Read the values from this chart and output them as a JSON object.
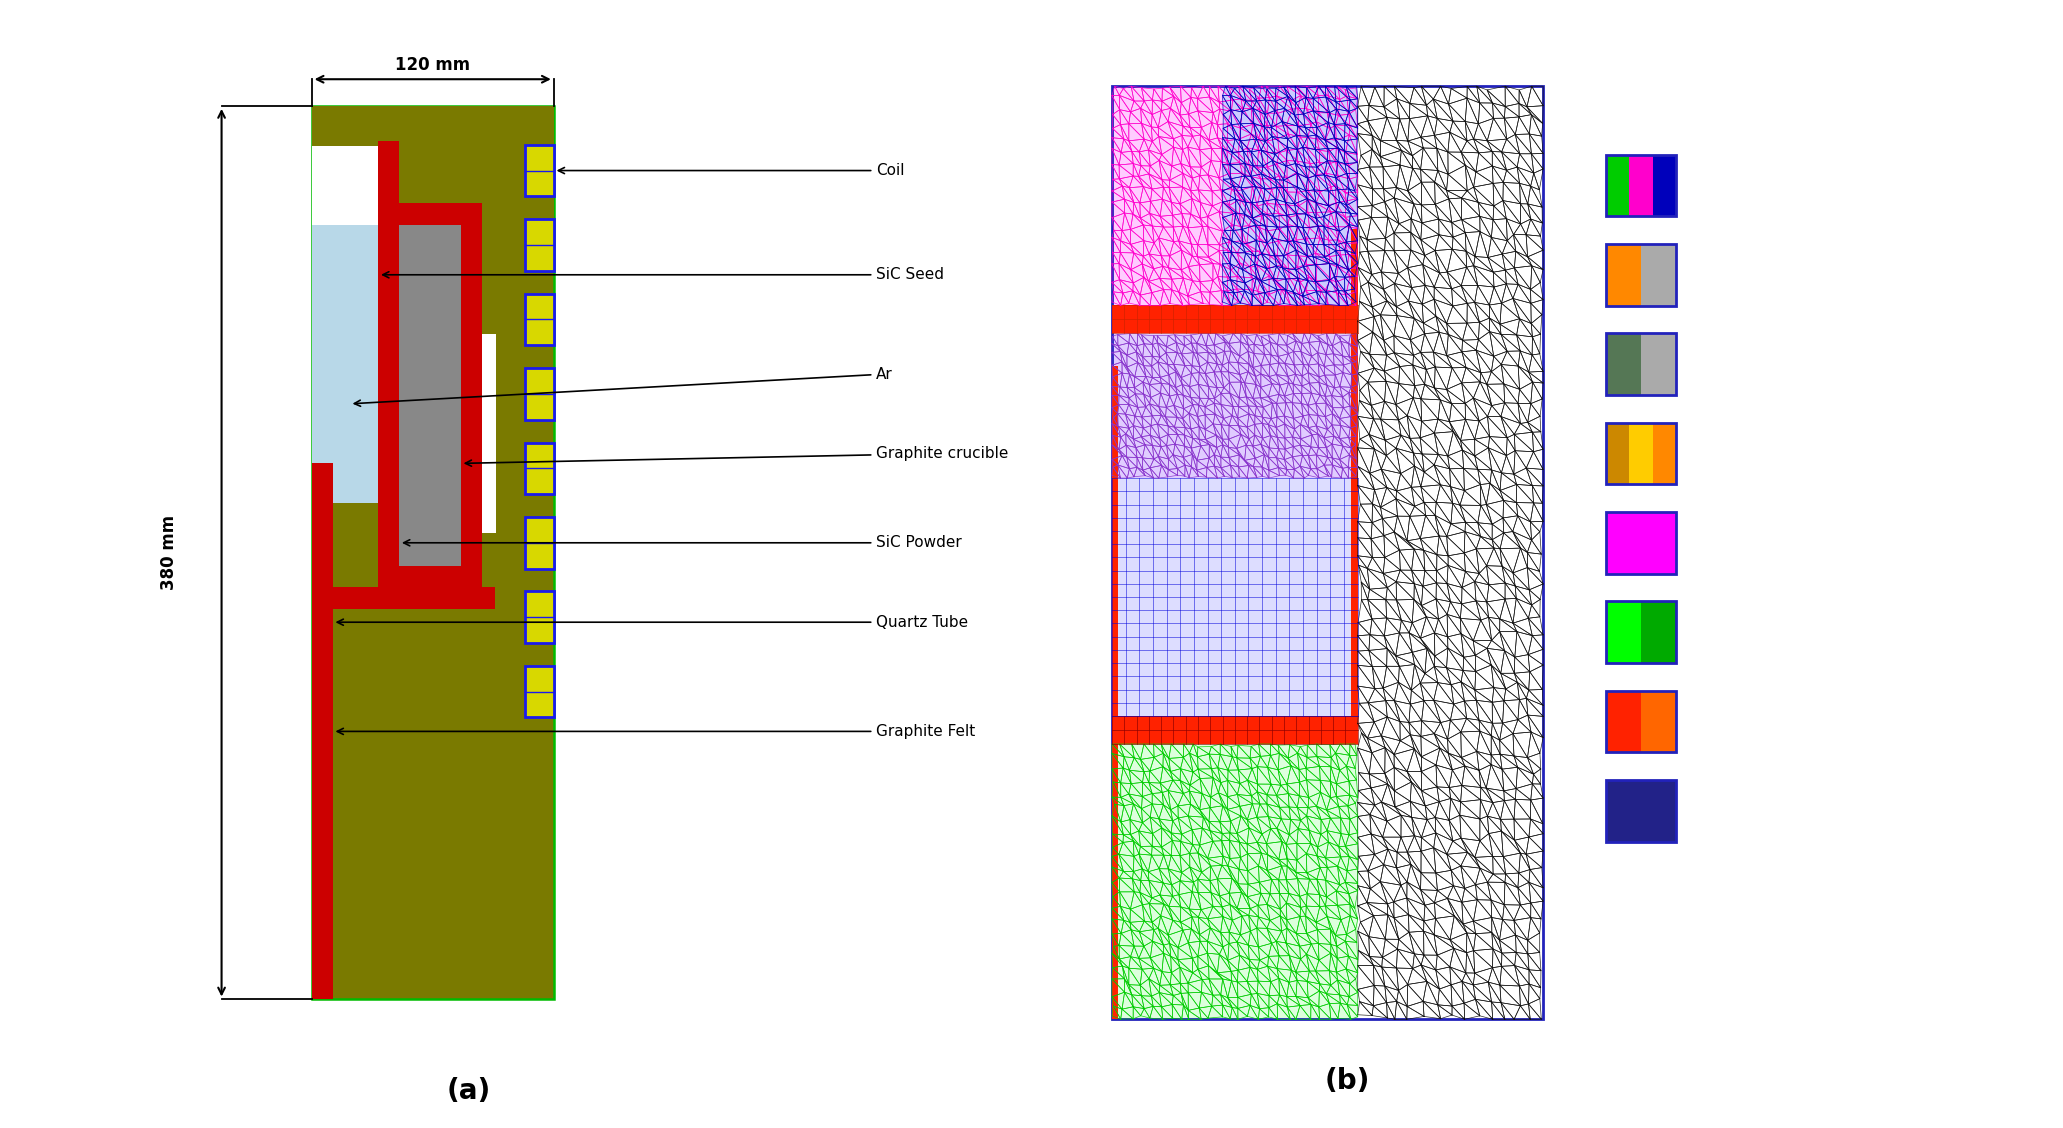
{
  "panel_a_label": "(a)",
  "panel_b_label": "(b)",
  "dim_120": "120 mm",
  "dim_380": "380 mm",
  "components": [
    "Coil",
    "SiC Seed",
    "Ar",
    "Graphite crucible",
    "SiC Powder",
    "Quartz Tube",
    "Graphite Felt"
  ],
  "colors": {
    "olive": "#7a7a00",
    "red_dark": "#cc0000",
    "light_blue": "#b8d8e8",
    "gray": "#888888",
    "white": "#ffffff",
    "coil_fill": "#d8d800",
    "coil_border": "#1a1aee",
    "green_border": "#00bb00",
    "blue_border": "#2222bb"
  }
}
